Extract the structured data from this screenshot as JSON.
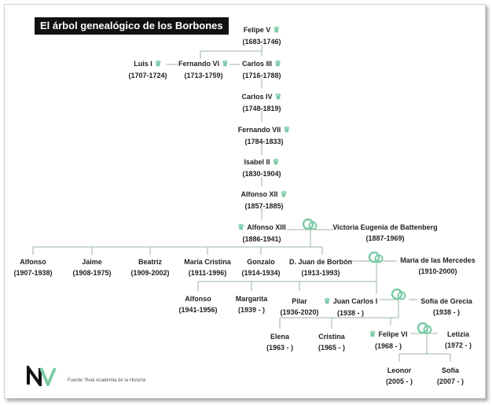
{
  "title": "El árbol genealógico de los Borbones",
  "source": "Fuente: Real Academia de la Historia",
  "colors": {
    "accent": "#7ccba7",
    "line": "#9bb4a6",
    "text": "#222222",
    "title_bg": "#111111"
  },
  "icons": {
    "monarch": "crown-icon",
    "marriage": "rings-icon",
    "logo": "nv-logo"
  },
  "people": {
    "felipe_v": {
      "name": "Felipe V",
      "dates": "(1683-1746)"
    },
    "luis_i": {
      "name": "Luis I",
      "dates": "(1707-1724)"
    },
    "fernando_vi": {
      "name": "Fernando VI",
      "dates": "(1713-1759)"
    },
    "carlos_iii": {
      "name": "Carlos III",
      "dates": "(1716-1788)"
    },
    "carlos_iv": {
      "name": "Carlos IV",
      "dates": "(1748-1819)"
    },
    "fernando_vii": {
      "name": "Fernando VII",
      "dates": "(1784-1833)"
    },
    "isabel_ii": {
      "name": "Isabel II",
      "dates": "(1830-1904)"
    },
    "alfonso_xii": {
      "name": "Alfonso XII",
      "dates": "(1857-1885)"
    },
    "alfonso_xiii": {
      "name": "Alfonso XIII",
      "dates": "(1886-1941)"
    },
    "victoria": {
      "name": "Victoria Eugenia de Battenberg",
      "dates": "(1887-1969)"
    },
    "alfonso": {
      "name": "Alfonso",
      "dates": "(1907-1938)"
    },
    "jaime": {
      "name": "Jaime",
      "dates": "(1908-1975)"
    },
    "beatriz": {
      "name": "Beatriz",
      "dates": "(1909-2002)"
    },
    "maria_cristina": {
      "name": "María Cristina",
      "dates": "(1911-1996)"
    },
    "gonzalo": {
      "name": "Gonzalo",
      "dates": "(1914-1934)"
    },
    "juan": {
      "name": "D. Juan de Borbón",
      "dates": "(1913-1993)"
    },
    "maria_mercedes": {
      "name": "María de las Mercedes",
      "dates": "(1910-2000)"
    },
    "alfonso2": {
      "name": "Alfonso",
      "dates": "(1941-1956)"
    },
    "margarita": {
      "name": "Margarita",
      "dates": "(1939 - )"
    },
    "pilar": {
      "name": "Pilar",
      "dates": "(1936-2020)"
    },
    "juan_carlos": {
      "name": "Juan Carlos I",
      "dates": "(1938 - )"
    },
    "sofia_grecia": {
      "name": "Sofía de Grecia",
      "dates": "(1938 - )"
    },
    "elena": {
      "name": "Elena",
      "dates": "(1963 - )"
    },
    "cristina": {
      "name": "Cristina",
      "dates": "(1965 - )"
    },
    "felipe_vi": {
      "name": "Felipe VI",
      "dates": "(1968 - )"
    },
    "letizia": {
      "name": "Letizia",
      "dates": "(1972 - )"
    },
    "leonor": {
      "name": "Leonor",
      "dates": "(2005 - )"
    },
    "sofia": {
      "name": "Sofía",
      "dates": "(2007 - )"
    }
  }
}
